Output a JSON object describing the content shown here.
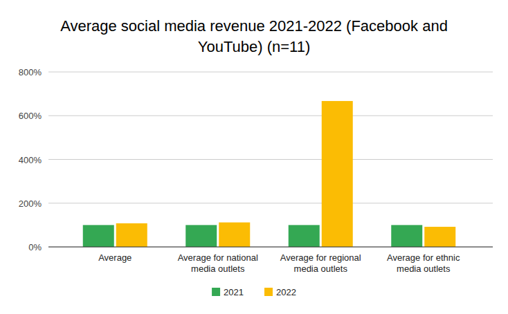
{
  "chart_data": {
    "type": "bar",
    "title": "Average social media revenue 2021-2022 (Facebook and YouTube) (n=11)",
    "categories": [
      "Average",
      "Average for national media outlets",
      "Average for regional media outlets",
      "Average for ethnic media outlets"
    ],
    "series": [
      {
        "name": "2021",
        "color": "#34a853",
        "values": [
          100,
          100,
          100,
          100
        ]
      },
      {
        "name": "2022",
        "color": "#fbbc04",
        "values": [
          108,
          112,
          667,
          92
        ]
      }
    ],
    "ylim": [
      0,
      800
    ],
    "yticks": [
      {
        "value": 0,
        "label": "0%"
      },
      {
        "value": 200,
        "label": "200%"
      },
      {
        "value": 400,
        "label": "400%"
      },
      {
        "value": 600,
        "label": "600%"
      },
      {
        "value": 800,
        "label": "800%"
      }
    ],
    "grid": true,
    "legend": "bottom"
  }
}
